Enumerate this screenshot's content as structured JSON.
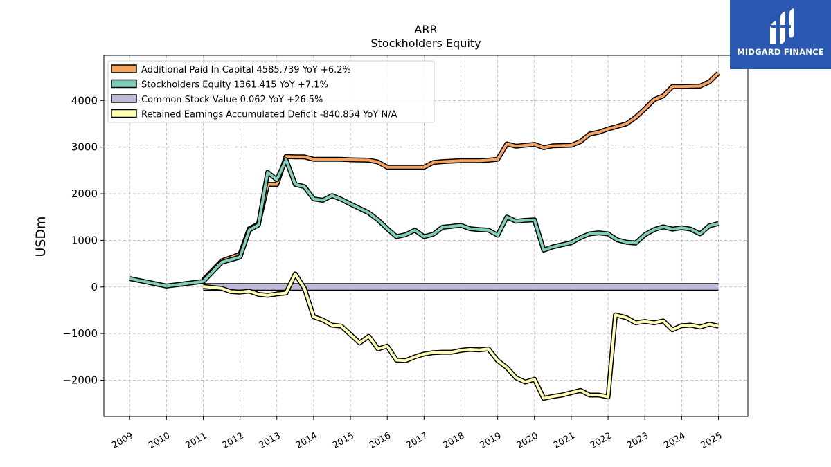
{
  "logo": {
    "text": "MIDGARD FINANCE",
    "background": "#2b58b0"
  },
  "chart_data": {
    "type": "line",
    "title": "ARR",
    "subtitle": "Stockholders  Equity",
    "xlabel": "",
    "ylabel": "USDm",
    "xlim": [
      2008.3,
      2025.8
    ],
    "ylim": [
      -2780,
      4970
    ],
    "x_ticks": [
      "2009",
      "2010",
      "2011",
      "2012",
      "2013",
      "2014",
      "2015",
      "2016",
      "2017",
      "2018",
      "2019",
      "2020",
      "2021",
      "2022",
      "2023",
      "2024",
      "2025"
    ],
    "y_ticks": [
      -2000,
      -1000,
      0,
      1000,
      2000,
      3000,
      4000
    ],
    "y_tick_labels": [
      "−2000",
      "−1000",
      "0",
      "1000",
      "2000",
      "3000",
      "4000"
    ],
    "grid": true,
    "legend_position": "top-left",
    "series": [
      {
        "name": "Additional Paid In Capital  4585.739 YoY +6.2%",
        "color": "#f4a460",
        "points": [
          [
            2011.0,
            150
          ],
          [
            2011.5,
            560
          ],
          [
            2012.0,
            700
          ],
          [
            2012.25,
            1250
          ],
          [
            2012.5,
            1350
          ],
          [
            2012.75,
            2200
          ],
          [
            2013.0,
            2200
          ],
          [
            2013.25,
            2800
          ],
          [
            2013.5,
            2790
          ],
          [
            2013.75,
            2790
          ],
          [
            2014.0,
            2740
          ],
          [
            2014.5,
            2740
          ],
          [
            2014.75,
            2740
          ],
          [
            2015.0,
            2730
          ],
          [
            2015.5,
            2720
          ],
          [
            2015.75,
            2680
          ],
          [
            2016.0,
            2570
          ],
          [
            2016.5,
            2570
          ],
          [
            2017.0,
            2570
          ],
          [
            2017.25,
            2670
          ],
          [
            2017.5,
            2690
          ],
          [
            2018.0,
            2710
          ],
          [
            2018.5,
            2710
          ],
          [
            2018.75,
            2720
          ],
          [
            2019.0,
            2740
          ],
          [
            2019.25,
            3070
          ],
          [
            2019.5,
            3020
          ],
          [
            2020.0,
            3060
          ],
          [
            2020.25,
            2990
          ],
          [
            2020.5,
            3030
          ],
          [
            2021.0,
            3040
          ],
          [
            2021.25,
            3120
          ],
          [
            2021.5,
            3280
          ],
          [
            2021.75,
            3320
          ],
          [
            2022.0,
            3390
          ],
          [
            2022.5,
            3500
          ],
          [
            2022.75,
            3640
          ],
          [
            2023.0,
            3820
          ],
          [
            2023.25,
            4020
          ],
          [
            2023.5,
            4100
          ],
          [
            2023.75,
            4300
          ],
          [
            2024.0,
            4300
          ],
          [
            2024.5,
            4310
          ],
          [
            2024.75,
            4400
          ],
          [
            2025.0,
            4590
          ]
        ]
      },
      {
        "name": "Stockholders Equity  1361.415 YoY +7.1%",
        "color": "#7fcdbb",
        "points": [
          [
            2009.0,
            180
          ],
          [
            2010.0,
            20
          ],
          [
            2011.0,
            120
          ],
          [
            2011.5,
            530
          ],
          [
            2012.0,
            640
          ],
          [
            2012.25,
            1220
          ],
          [
            2012.5,
            1330
          ],
          [
            2012.75,
            2460
          ],
          [
            2013.0,
            2300
          ],
          [
            2013.25,
            2730
          ],
          [
            2013.5,
            2200
          ],
          [
            2013.75,
            2150
          ],
          [
            2014.0,
            1890
          ],
          [
            2014.25,
            1860
          ],
          [
            2014.5,
            1960
          ],
          [
            2014.75,
            1880
          ],
          [
            2015.0,
            1780
          ],
          [
            2015.5,
            1590
          ],
          [
            2015.75,
            1440
          ],
          [
            2016.0,
            1250
          ],
          [
            2016.25,
            1080
          ],
          [
            2016.5,
            1120
          ],
          [
            2016.75,
            1220
          ],
          [
            2017.0,
            1080
          ],
          [
            2017.25,
            1130
          ],
          [
            2017.5,
            1280
          ],
          [
            2018.0,
            1320
          ],
          [
            2018.25,
            1250
          ],
          [
            2018.5,
            1230
          ],
          [
            2018.75,
            1220
          ],
          [
            2019.0,
            1110
          ],
          [
            2019.25,
            1500
          ],
          [
            2019.5,
            1410
          ],
          [
            2019.75,
            1430
          ],
          [
            2020.0,
            1440
          ],
          [
            2020.25,
            790
          ],
          [
            2020.5,
            860
          ],
          [
            2021.0,
            950
          ],
          [
            2021.25,
            1060
          ],
          [
            2021.5,
            1140
          ],
          [
            2021.75,
            1160
          ],
          [
            2022.0,
            1140
          ],
          [
            2022.25,
            1010
          ],
          [
            2022.5,
            960
          ],
          [
            2022.75,
            940
          ],
          [
            2023.0,
            1120
          ],
          [
            2023.25,
            1230
          ],
          [
            2023.5,
            1290
          ],
          [
            2023.75,
            1240
          ],
          [
            2024.0,
            1270
          ],
          [
            2024.25,
            1240
          ],
          [
            2024.5,
            1140
          ],
          [
            2024.75,
            1310
          ],
          [
            2025.0,
            1361
          ]
        ]
      },
      {
        "name": "Common Stock Value  0.062 YoY +26.5%",
        "color": "#bebada",
        "points": [
          [
            2011.0,
            0.0
          ],
          [
            2025.0,
            0.062
          ]
        ]
      },
      {
        "name": "Retained Earnings Accumulated Deficit  -840.854 YoY N/A",
        "color": "#ffffb3",
        "points": [
          [
            2011.0,
            10
          ],
          [
            2011.5,
            -30
          ],
          [
            2011.75,
            -100
          ],
          [
            2012.0,
            -110
          ],
          [
            2012.25,
            -90
          ],
          [
            2012.5,
            -160
          ],
          [
            2012.75,
            -180
          ],
          [
            2013.0,
            -150
          ],
          [
            2013.25,
            -130
          ],
          [
            2013.5,
            280
          ],
          [
            2013.75,
            -30
          ],
          [
            2014.0,
            -640
          ],
          [
            2014.25,
            -710
          ],
          [
            2014.5,
            -820
          ],
          [
            2014.75,
            -840
          ],
          [
            2015.0,
            -1020
          ],
          [
            2015.25,
            -1200
          ],
          [
            2015.5,
            -1060
          ],
          [
            2015.75,
            -1330
          ],
          [
            2016.0,
            -1270
          ],
          [
            2016.25,
            -1570
          ],
          [
            2016.5,
            -1580
          ],
          [
            2016.75,
            -1500
          ],
          [
            2017.0,
            -1440
          ],
          [
            2017.25,
            -1410
          ],
          [
            2017.5,
            -1400
          ],
          [
            2017.75,
            -1400
          ],
          [
            2018.0,
            -1360
          ],
          [
            2018.25,
            -1340
          ],
          [
            2018.5,
            -1350
          ],
          [
            2018.75,
            -1330
          ],
          [
            2019.0,
            -1580
          ],
          [
            2019.25,
            -1730
          ],
          [
            2019.5,
            -1950
          ],
          [
            2019.75,
            -2040
          ],
          [
            2020.0,
            -1980
          ],
          [
            2020.25,
            -2390
          ],
          [
            2020.5,
            -2350
          ],
          [
            2020.75,
            -2320
          ],
          [
            2021.0,
            -2270
          ],
          [
            2021.25,
            -2220
          ],
          [
            2021.5,
            -2320
          ],
          [
            2021.75,
            -2320
          ],
          [
            2022.0,
            -2360
          ],
          [
            2022.2,
            -600
          ],
          [
            2022.5,
            -660
          ],
          [
            2022.75,
            -770
          ],
          [
            2023.0,
            -740
          ],
          [
            2023.25,
            -770
          ],
          [
            2023.5,
            -730
          ],
          [
            2023.75,
            -920
          ],
          [
            2024.0,
            -830
          ],
          [
            2024.25,
            -820
          ],
          [
            2024.5,
            -860
          ],
          [
            2024.75,
            -800
          ],
          [
            2025.0,
            -841
          ]
        ]
      }
    ]
  }
}
